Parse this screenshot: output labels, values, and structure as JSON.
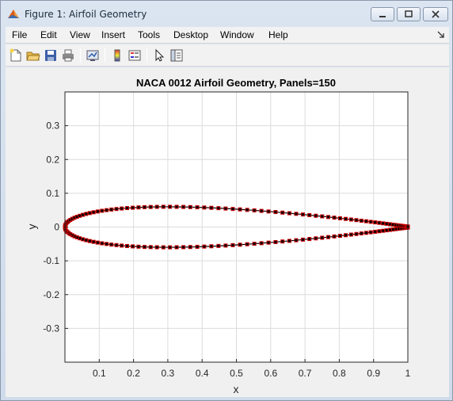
{
  "window": {
    "title": "Figure 1: Airfoil Geometry"
  },
  "menu": [
    "File",
    "Edit",
    "View",
    "Insert",
    "Tools",
    "Desktop",
    "Window",
    "Help"
  ],
  "toolbar": {
    "icons": [
      "new-figure-icon",
      "open-file-icon",
      "save-icon",
      "print-icon",
      "link-plot-icon",
      "insert-colorbar-icon",
      "insert-legend-icon",
      "edit-plot-icon",
      "property-inspector-icon"
    ]
  },
  "colors": {
    "marker_edge": "#cc0000",
    "marker_face": "#000000",
    "line": "#000000"
  },
  "chart_data": {
    "type": "line",
    "title": "NACA 0012 Airfoil Geometry, Panels=150",
    "xlabel": "x",
    "ylabel": "y",
    "xlim": [
      0,
      1
    ],
    "ylim": [
      -0.4,
      0.4
    ],
    "xticks": [
      "0.1",
      "0.2",
      "0.3",
      "0.4",
      "0.5",
      "0.6",
      "0.7",
      "0.8",
      "0.9",
      "1"
    ],
    "yticks": [
      "-0.3",
      "-0.2",
      "-0.1",
      "0",
      "0.1",
      "0.2",
      "0.3"
    ],
    "grid": true,
    "series": [
      {
        "marker": "square",
        "thickness_ratio": 0.12,
        "panels": 150
      }
    ]
  }
}
